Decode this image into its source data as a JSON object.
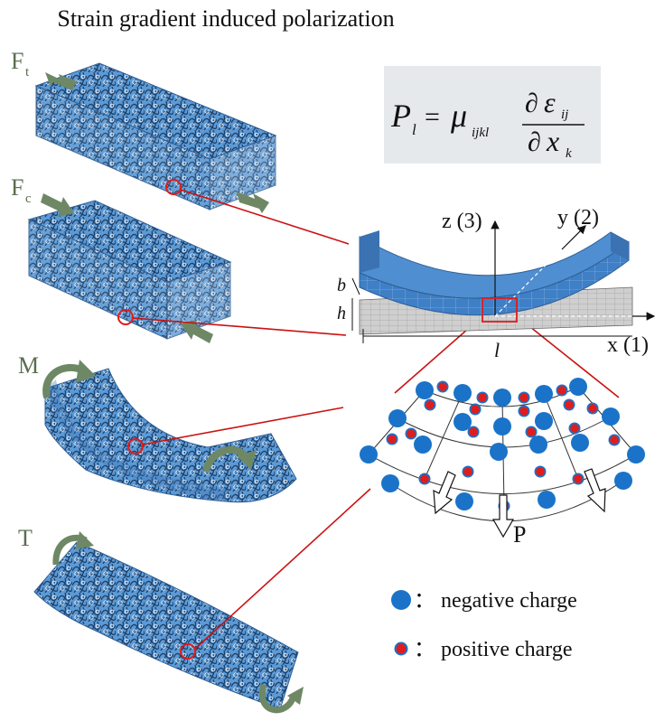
{
  "title": "Strain gradient induced polarization",
  "formula": {
    "lhs": "P",
    "lhs_sub": "l",
    "equals": "=",
    "coef": "μ",
    "coef_sub": "ijkl",
    "num_d": "∂",
    "num_sym": "ε",
    "num_sub": "ij",
    "den_d": "∂",
    "den_sym": "x",
    "den_sub": "k"
  },
  "load_labels": {
    "tension": "F",
    "tension_sub": "t",
    "compression": "F",
    "compression_sub": "c",
    "moment": "M",
    "torsion": "T"
  },
  "beam": {
    "z_axis": "z (3)",
    "y_axis": "y (2)",
    "x_axis": "x (1)",
    "dim_b": "b",
    "dim_h": "h",
    "dim_l": "l"
  },
  "polarization_label": "P",
  "legend": [
    {
      "label": "negative charge",
      "sep": "：",
      "color": "#1a73c8"
    },
    {
      "label": "positive charge",
      "sep": "：",
      "color": "#e01c1c"
    }
  ],
  "colors": {
    "mesh_blue": "#4f8ed0",
    "arrow_green": "#6e8866",
    "leader_red": "#cc1111",
    "beam_gray": "#c8c8c8"
  }
}
